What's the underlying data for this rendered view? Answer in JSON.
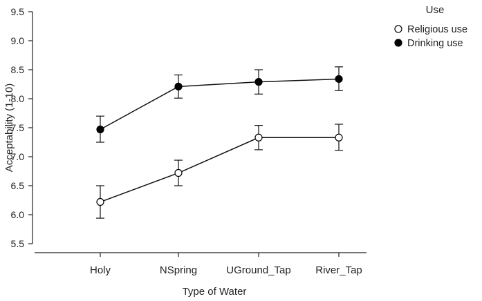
{
  "chart_data": {
    "type": "line",
    "categories": [
      "Holy",
      "NSpring",
      "UGround_Tap",
      "River_Tap"
    ],
    "xlabel": "Type of Water",
    "ylabel": "Acceptability (1-10)",
    "ylim": [
      5.5,
      9.5
    ],
    "yticks": [
      5.5,
      6.0,
      6.5,
      7.0,
      7.5,
      8.0,
      8.5,
      9.0,
      9.5
    ],
    "legend": {
      "title": "Use",
      "placement": "top-right"
    },
    "grid": false,
    "series": [
      {
        "name": "Religious use",
        "marker": "open-circle",
        "values": [
          6.22,
          6.72,
          7.33,
          7.33
        ],
        "err_low": [
          5.94,
          6.5,
          7.12,
          7.11
        ],
        "err_high": [
          6.5,
          6.94,
          7.54,
          7.56
        ]
      },
      {
        "name": "Drinking use",
        "marker": "filled-circle",
        "values": [
          7.47,
          8.21,
          8.29,
          8.34
        ],
        "err_low": [
          7.25,
          8.01,
          8.08,
          8.14
        ],
        "err_high": [
          7.7,
          8.41,
          8.5,
          8.55
        ]
      }
    ]
  }
}
